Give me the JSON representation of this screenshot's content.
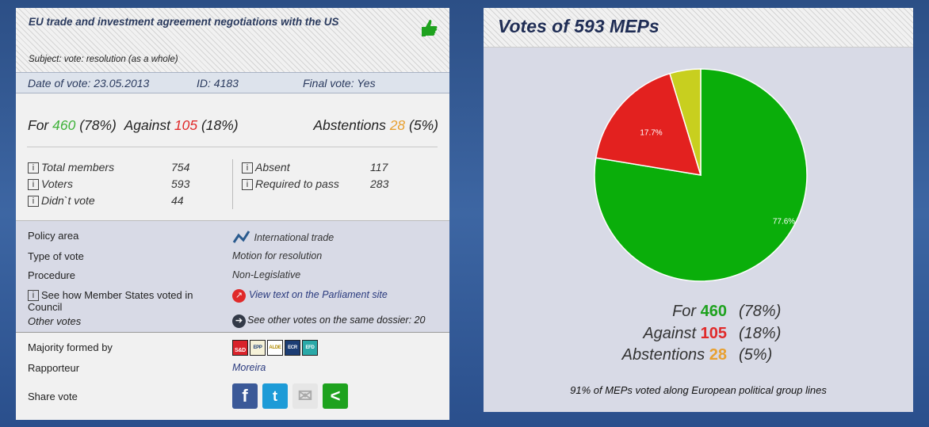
{
  "vote": {
    "title": "EU trade and investment agreement negotiations with the US",
    "subject": "Subject: vote: resolution (as a whole)",
    "date": "Date of vote: 23.05.2013",
    "id": "ID: 4183",
    "final": "Final vote: Yes",
    "for_label": "For",
    "for_count": "460",
    "for_pct": "(78%)",
    "against_label": "Against",
    "against_count": "105",
    "against_pct": "(18%)",
    "abst_label": "Abstentions",
    "abst_count": "28",
    "abst_pct": "(5%)",
    "stats": [
      {
        "label": "Total members",
        "value": "754"
      },
      {
        "label": "Voters",
        "value": "593"
      },
      {
        "label": "Didn`t vote",
        "value": "44"
      },
      {
        "label": "Absent",
        "value": "117"
      },
      {
        "label": "Required to pass",
        "value": "283"
      }
    ],
    "info_glyph": "i"
  },
  "details": {
    "policy_label": "Policy area",
    "policy_value": "International trade",
    "type_label": "Type of vote",
    "type_value": "Motion for resolution",
    "procedure_label": "Procedure",
    "procedure_value": "Non-Legislative",
    "council_label": "See how Member States voted in Council",
    "view_text": "View text on the Parliament site",
    "other_label": "Other votes",
    "other_value": "See other votes on the same dossier: 20",
    "majority_label": "Majority formed by",
    "groups": [
      "S&D",
      "EPP",
      "ALDE",
      "ECR",
      "EFD"
    ],
    "rapporteur_label": "Rapporteur",
    "rapporteur_value": "Moreira",
    "share_label": "Share vote",
    "share_glyphs": [
      "f",
      "t",
      "✉",
      "<"
    ]
  },
  "chart_panel": {
    "title": "Votes of 593 MEPs",
    "legend": [
      {
        "label": "For",
        "count": "460",
        "pct": "(78%)"
      },
      {
        "label": "Against",
        "count": "105",
        "pct": "(18%)"
      },
      {
        "label": "Abstentions",
        "count": "28",
        "pct": "(5%)"
      }
    ],
    "note": "91% of MEPs voted along European political group lines"
  },
  "chart_data": {
    "type": "pie",
    "categories": [
      "For",
      "Against",
      "Abstentions"
    ],
    "values": [
      77.6,
      17.7,
      4.7
    ],
    "labels": [
      "77.6%",
      "17.7%",
      ""
    ],
    "colors": [
      "#0aae0a",
      "#e3211f",
      "#c8cf1f"
    ]
  }
}
